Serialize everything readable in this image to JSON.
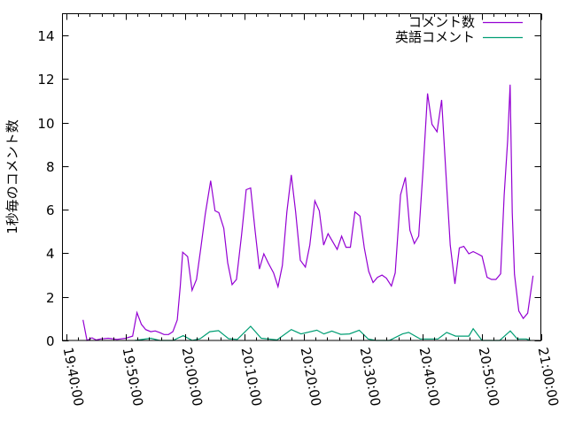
{
  "chart_data": {
    "type": "line",
    "title": "",
    "xlabel": "",
    "ylabel": "1秒毎のコメント数",
    "xlim": [
      "19:39:24",
      "21:00:00"
    ],
    "ylim": [
      0,
      15
    ],
    "x_ticks": [
      "19:40:00",
      "19:50:00",
      "20:00:00",
      "20:10:00",
      "20:20:00",
      "20:30:00",
      "20:40:00",
      "20:50:00",
      "21:00:00"
    ],
    "y_ticks": [
      0,
      2,
      4,
      6,
      8,
      10,
      12,
      14
    ],
    "grid": false,
    "legend_position": "top-right",
    "series": [
      {
        "name": "コメント数",
        "color": "#9400d3",
        "points": [
          [
            "19:42:52",
            0.94
          ],
          [
            "19:43:32",
            0.0
          ],
          [
            "19:44:22",
            0.12
          ],
          [
            "19:45:06",
            0.02
          ],
          [
            "19:45:48",
            0.07
          ],
          [
            "19:47:06",
            0.1
          ],
          [
            "19:48:35",
            0.05
          ],
          [
            "19:50:04",
            0.1
          ],
          [
            "19:51:13",
            0.2
          ],
          [
            "19:51:57",
            1.28
          ],
          [
            "19:52:42",
            0.74
          ],
          [
            "19:53:26",
            0.5
          ],
          [
            "19:54:17",
            0.4
          ],
          [
            "19:55:02",
            0.44
          ],
          [
            "19:55:46",
            0.36
          ],
          [
            "19:56:31",
            0.27
          ],
          [
            "19:57:16",
            0.27
          ],
          [
            "19:58:00",
            0.4
          ],
          [
            "19:58:45",
            0.94
          ],
          [
            "19:59:15",
            2.5
          ],
          [
            "19:59:39",
            4.05
          ],
          [
            "20:00:29",
            3.85
          ],
          [
            "20:01:14",
            2.3
          ],
          [
            "20:01:59",
            2.8
          ],
          [
            "20:02:43",
            4.25
          ],
          [
            "20:03:28",
            5.8
          ],
          [
            "20:04:22",
            7.33
          ],
          [
            "20:05:06",
            5.95
          ],
          [
            "20:05:45",
            5.87
          ],
          [
            "20:06:35",
            5.15
          ],
          [
            "20:07:14",
            3.57
          ],
          [
            "20:07:59",
            2.56
          ],
          [
            "20:08:43",
            2.8
          ],
          [
            "20:09:34",
            4.82
          ],
          [
            "20:10:21",
            6.92
          ],
          [
            "20:11:06",
            7.0
          ],
          [
            "20:11:51",
            5.06
          ],
          [
            "20:12:35",
            3.28
          ],
          [
            "20:13:20",
            3.98
          ],
          [
            "20:14:05",
            3.55
          ],
          [
            "20:14:58",
            3.1
          ],
          [
            "20:15:43",
            2.47
          ],
          [
            "20:16:27",
            3.44
          ],
          [
            "20:17:12",
            5.9
          ],
          [
            "20:17:57",
            7.6
          ],
          [
            "20:18:41",
            5.9
          ],
          [
            "20:19:29",
            3.68
          ],
          [
            "20:20:20",
            3.37
          ],
          [
            "20:21:04",
            4.38
          ],
          [
            "20:21:55",
            6.41
          ],
          [
            "20:22:40",
            5.95
          ],
          [
            "20:23:24",
            4.38
          ],
          [
            "20:24:09",
            4.9
          ],
          [
            "20:24:54",
            4.55
          ],
          [
            "20:25:41",
            4.18
          ],
          [
            "20:26:26",
            4.79
          ],
          [
            "20:27:10",
            4.28
          ],
          [
            "20:27:55",
            4.28
          ],
          [
            "20:28:40",
            5.9
          ],
          [
            "20:29:31",
            5.71
          ],
          [
            "20:30:15",
            4.25
          ],
          [
            "20:31:00",
            3.17
          ],
          [
            "20:31:44",
            2.66
          ],
          [
            "20:32:29",
            2.9
          ],
          [
            "20:33:14",
            3.0
          ],
          [
            "20:33:58",
            2.86
          ],
          [
            "20:34:49",
            2.5
          ],
          [
            "20:35:28",
            3.1
          ],
          [
            "20:36:21",
            6.68
          ],
          [
            "20:37:11",
            7.49
          ],
          [
            "20:37:56",
            5.06
          ],
          [
            "20:38:41",
            4.45
          ],
          [
            "20:39:25",
            4.79
          ],
          [
            "20:40:10",
            7.89
          ],
          [
            "20:40:55",
            11.34
          ],
          [
            "20:41:39",
            9.92
          ],
          [
            "20:42:30",
            9.58
          ],
          [
            "20:43:17",
            11.04
          ],
          [
            "20:43:59",
            7.76
          ],
          [
            "20:44:44",
            4.38
          ],
          [
            "20:45:31",
            2.6
          ],
          [
            "20:46:16",
            4.25
          ],
          [
            "20:47:01",
            4.32
          ],
          [
            "20:47:52",
            3.98
          ],
          [
            "20:48:36",
            4.08
          ],
          [
            "20:49:21",
            3.98
          ],
          [
            "20:50:05",
            3.87
          ],
          [
            "20:50:56",
            2.9
          ],
          [
            "20:51:41",
            2.8
          ],
          [
            "20:52:26",
            2.8
          ],
          [
            "20:53:13",
            3.06
          ],
          [
            "20:53:49",
            6.68
          ],
          [
            "20:54:24",
            9.18
          ],
          [
            "20:54:49",
            11.74
          ],
          [
            "20:55:11",
            5.87
          ],
          [
            "20:55:33",
            3.04
          ],
          [
            "20:56:17",
            1.35
          ],
          [
            "20:57:02",
            1.01
          ],
          [
            "20:57:47",
            1.25
          ],
          [
            "20:58:41",
            2.97
          ]
        ]
      },
      {
        "name": "英語コメント",
        "color": "#009e73",
        "points": [
          [
            "19:51:36",
            0
          ],
          [
            "19:54:17",
            0.1
          ],
          [
            "19:55:46",
            0
          ],
          [
            "19:58:00",
            0
          ],
          [
            "19:59:45",
            0.22
          ],
          [
            "20:01:17",
            0
          ],
          [
            "20:02:37",
            0.08
          ],
          [
            "20:04:13",
            0.4
          ],
          [
            "20:05:42",
            0.45
          ],
          [
            "20:07:23",
            0.08
          ],
          [
            "20:08:52",
            0.05
          ],
          [
            "20:11:06",
            0.65
          ],
          [
            "20:12:53",
            0.1
          ],
          [
            "20:15:34",
            0.03
          ],
          [
            "20:17:57",
            0.5
          ],
          [
            "20:19:35",
            0.3
          ],
          [
            "20:22:16",
            0.47
          ],
          [
            "20:23:27",
            0.3
          ],
          [
            "20:24:47",
            0.43
          ],
          [
            "20:26:17",
            0.28
          ],
          [
            "20:27:46",
            0.3
          ],
          [
            "20:29:24",
            0.47
          ],
          [
            "20:30:54",
            0.07
          ],
          [
            "20:32:14",
            0
          ],
          [
            "20:34:28",
            0
          ],
          [
            "20:36:42",
            0.3
          ],
          [
            "20:37:44",
            0.37
          ],
          [
            "20:39:40",
            0.07
          ],
          [
            "20:42:39",
            0.07
          ],
          [
            "20:44:08",
            0.37
          ],
          [
            "20:45:38",
            0.2
          ],
          [
            "20:47:52",
            0.2
          ],
          [
            "20:48:36",
            0.54
          ],
          [
            "20:50:05",
            0
          ],
          [
            "20:53:04",
            0
          ],
          [
            "20:54:51",
            0.44
          ],
          [
            "20:56:02",
            0.07
          ],
          [
            "20:57:32",
            0.07
          ],
          [
            "20:58:16",
            0
          ]
        ]
      }
    ]
  }
}
